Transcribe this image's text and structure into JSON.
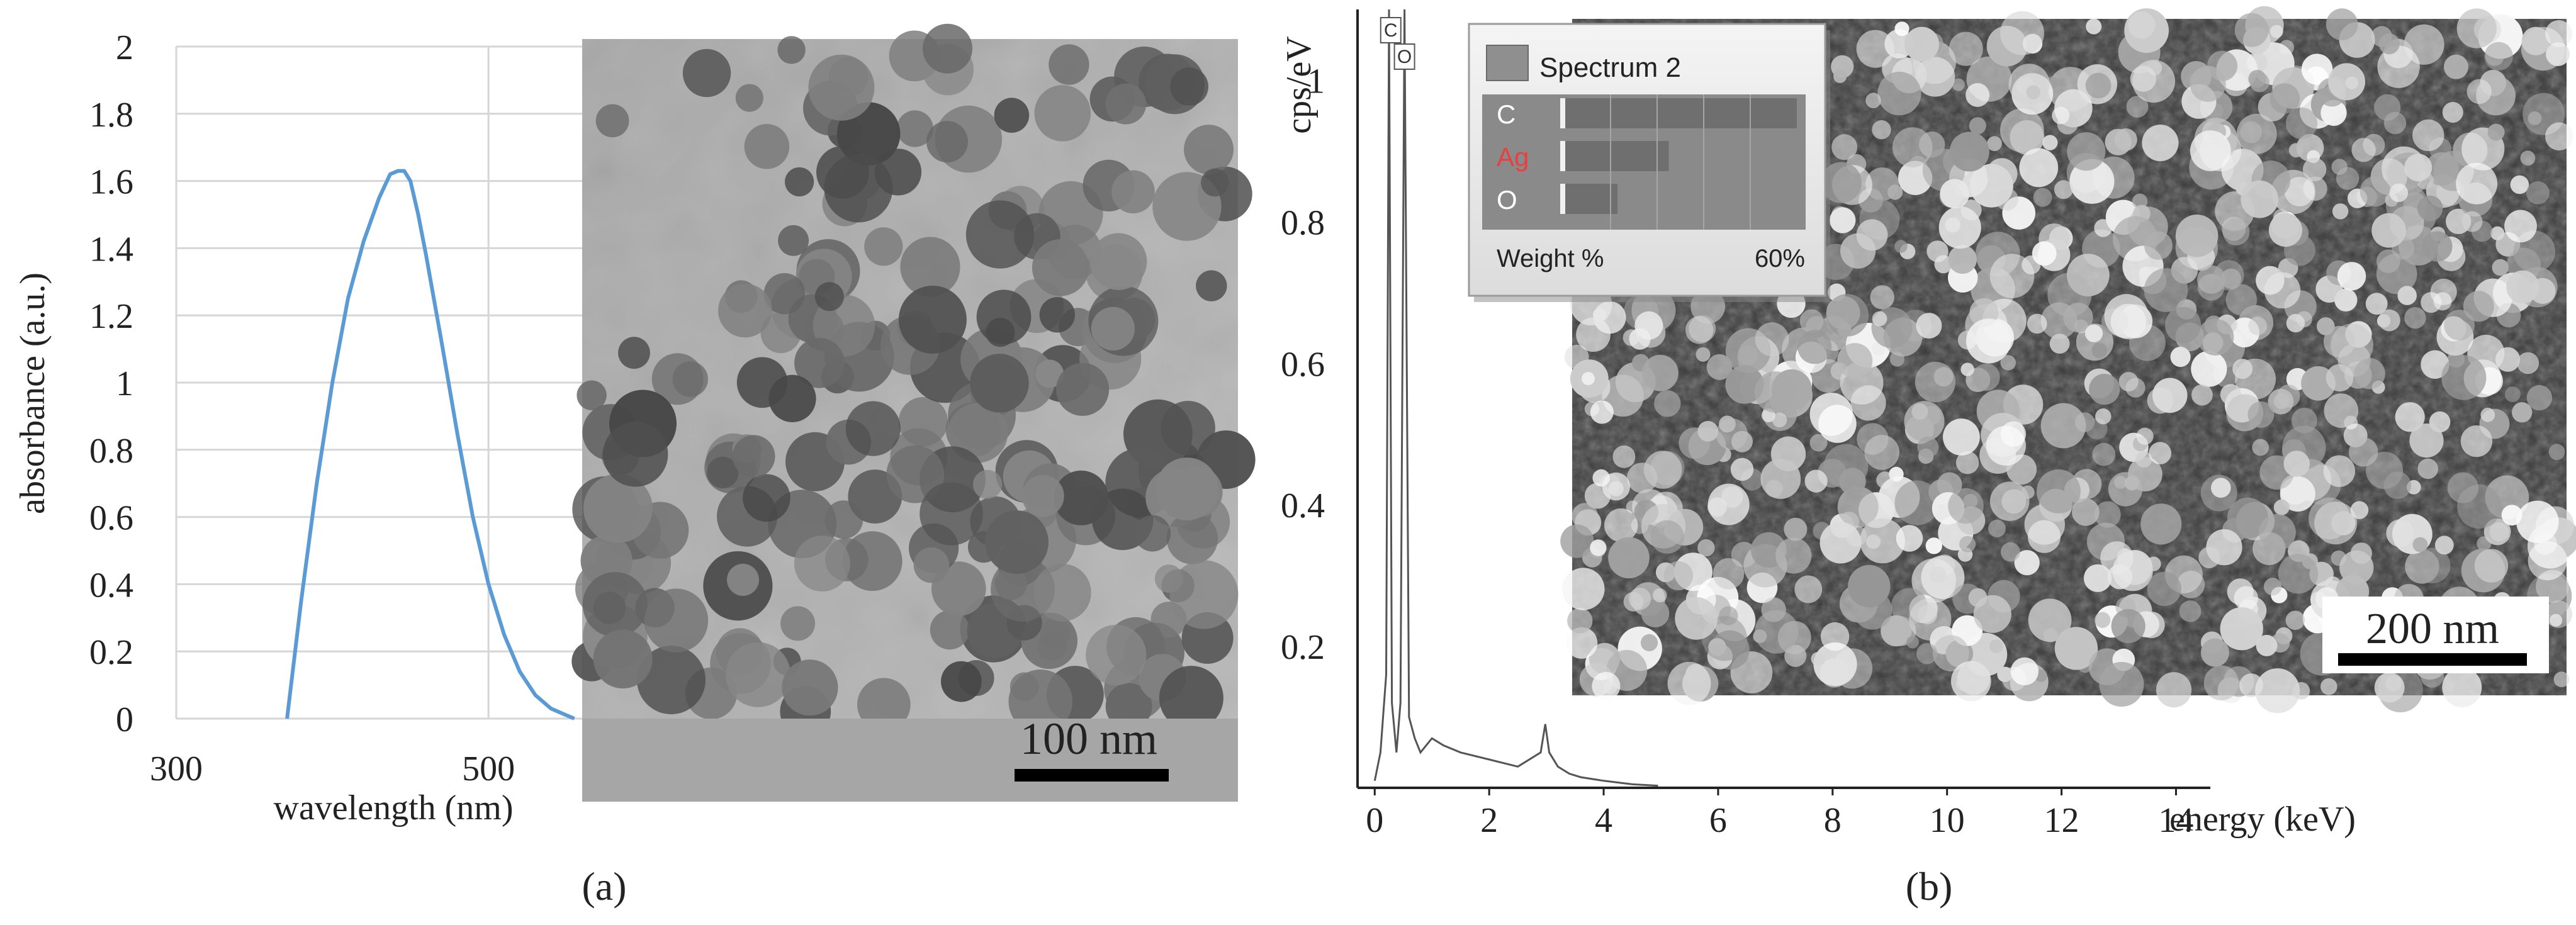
{
  "panels": [
    {
      "label": "(a)"
    },
    {
      "label": "(b)"
    }
  ],
  "chart_data": [
    {
      "type": "line",
      "title": "",
      "xlabel": "wavelength (nm)",
      "ylabel": "absorbance (a.u.)",
      "xlim": [
        300,
        560
      ],
      "ylim": [
        0,
        2
      ],
      "xticks": [
        300,
        500
      ],
      "yticks": [
        0,
        0.2,
        0.4,
        0.6,
        0.8,
        1,
        1.2,
        1.4,
        1.6,
        1.8,
        2
      ],
      "grid": true,
      "color": "#5b9bd5",
      "series": [
        {
          "x": [
            371,
            380,
            390,
            400,
            410,
            420,
            430,
            437,
            442,
            446,
            450,
            455,
            460,
            470,
            480,
            490,
            500,
            510,
            520,
            530,
            540,
            550,
            555
          ],
          "y": [
            0,
            0.35,
            0.7,
            1.0,
            1.25,
            1.42,
            1.55,
            1.62,
            1.63,
            1.63,
            1.6,
            1.5,
            1.38,
            1.12,
            0.85,
            0.6,
            0.4,
            0.25,
            0.14,
            0.07,
            0.03,
            0.01,
            0
          ]
        }
      ],
      "inset": {
        "kind": "TEM micrograph",
        "scale_bar": "100 nm"
      }
    },
    {
      "type": "line",
      "title": "",
      "xlabel": "energy (keV)",
      "ylabel": "cps/eV",
      "xlim": [
        -0.3,
        14.6
      ],
      "ylim": [
        0,
        1.1
      ],
      "xticks": [
        0,
        2,
        4,
        6,
        8,
        10,
        12,
        14
      ],
      "yticks": [
        0.2,
        0.4,
        0.6,
        0.8,
        1
      ],
      "grid": false,
      "color": "#555555",
      "series": [
        {
          "x": [
            0,
            0.1,
            0.2,
            0.25,
            0.3,
            0.38,
            0.45,
            0.52,
            0.6,
            0.7,
            0.8,
            1.0,
            1.2,
            1.5,
            2.0,
            2.5,
            2.9,
            2.98,
            3.05,
            3.2,
            3.4,
            3.6,
            4.0,
            4.5,
            4.95
          ],
          "y": [
            0.01,
            0.05,
            0.16,
            1.1,
            0.12,
            0.05,
            0.12,
            1.1,
            0.1,
            0.07,
            0.05,
            0.07,
            0.06,
            0.05,
            0.04,
            0.03,
            0.05,
            0.09,
            0.05,
            0.03,
            0.02,
            0.015,
            0.01,
            0.005,
            0.003
          ]
        }
      ],
      "peak_markers": [
        "C",
        "O"
      ],
      "inset": {
        "kind": "SEM micrograph",
        "scale_bar": "200 nm",
        "eds_box": {
          "title": "Spectrum 2",
          "elements": [
            {
              "name": "C",
              "value": 100,
              "color": "#ffffff"
            },
            {
              "name": "Ag",
              "value": 45,
              "color": "#e84040"
            },
            {
              "name": "O",
              "value": 23,
              "color": "#ffffff"
            }
          ],
          "footer_label": "Weight %",
          "footer_value": "60%",
          "max_value": 100
        }
      }
    }
  ]
}
